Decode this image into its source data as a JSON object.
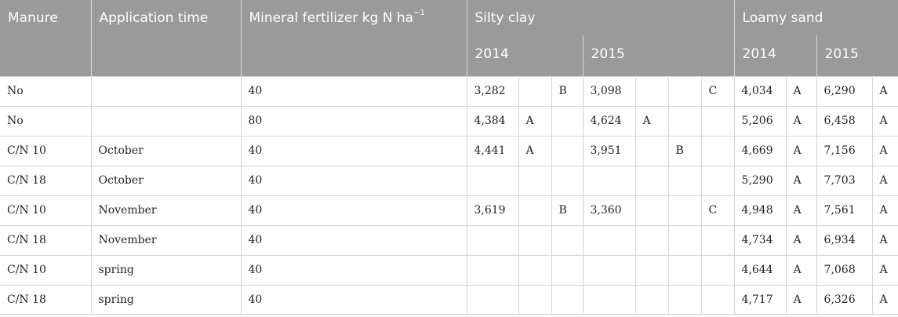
{
  "header": {
    "manure": "Manure",
    "application_time": "Application time",
    "mineral_fertilizer": "Mineral fertilizer kg N ha",
    "mineral_fertilizer_sup": "−1",
    "silty_clay": "Silty clay",
    "loamy_sand": "Loamy sand",
    "year_2014": "2014",
    "year_2015": "2015"
  },
  "rows": [
    {
      "manure": "No",
      "time": "",
      "mineral": "40",
      "sc14": "3,282",
      "sc14_a": "",
      "sc14_b": "B",
      "sc15": "3,098",
      "sc15_a": "",
      "sc15_b": "",
      "sc15_c": "C",
      "ls14": "4,034",
      "ls14_g": "A",
      "ls15": "6,290",
      "ls15_g": "A"
    },
    {
      "manure": "No",
      "time": "",
      "mineral": "80",
      "sc14": "4,384",
      "sc14_a": "A",
      "sc14_b": "",
      "sc15": "4,624",
      "sc15_a": "A",
      "sc15_b": "",
      "sc15_c": "",
      "ls14": "5,206",
      "ls14_g": "A",
      "ls15": "6,458",
      "ls15_g": "A"
    },
    {
      "manure": "C/N 10",
      "time": "October",
      "mineral": "40",
      "sc14": "4,441",
      "sc14_a": "A",
      "sc14_b": "",
      "sc15": "3,951",
      "sc15_a": "",
      "sc15_b": "B",
      "sc15_c": "",
      "ls14": "4,669",
      "ls14_g": "A",
      "ls15": "7,156",
      "ls15_g": "A"
    },
    {
      "manure": "C/N 18",
      "time": "October",
      "mineral": "40",
      "sc14": "",
      "sc14_a": "",
      "sc14_b": "",
      "sc15": "",
      "sc15_a": "",
      "sc15_b": "",
      "sc15_c": "",
      "ls14": "5,290",
      "ls14_g": "A",
      "ls15": "7,703",
      "ls15_g": "A"
    },
    {
      "manure": "C/N 10",
      "time": "November",
      "mineral": "40",
      "sc14": "3,619",
      "sc14_a": "",
      "sc14_b": "B",
      "sc15": "3,360",
      "sc15_a": "",
      "sc15_b": "",
      "sc15_c": "C",
      "ls14": "4,948",
      "ls14_g": "A",
      "ls15": "7,561",
      "ls15_g": "A"
    },
    {
      "manure": "C/N 18",
      "time": "November",
      "mineral": "40",
      "sc14": "",
      "sc14_a": "",
      "sc14_b": "",
      "sc15": "",
      "sc15_a": "",
      "sc15_b": "",
      "sc15_c": "",
      "ls14": "4,734",
      "ls14_g": "A",
      "ls15": "6,934",
      "ls15_g": "A"
    },
    {
      "manure": "C/N 10",
      "time": "spring",
      "mineral": "40",
      "sc14": "",
      "sc14_a": "",
      "sc14_b": "",
      "sc15": "",
      "sc15_a": "",
      "sc15_b": "",
      "sc15_c": "",
      "ls14": "4,644",
      "ls14_g": "A",
      "ls15": "7,068",
      "ls15_g": "A"
    },
    {
      "manure": "C/N 18",
      "time": "spring",
      "mineral": "40",
      "sc14": "",
      "sc14_a": "",
      "sc14_b": "",
      "sc15": "",
      "sc15_a": "",
      "sc15_b": "",
      "sc15_c": "",
      "ls14": "4,717",
      "ls14_g": "A",
      "ls15": "6,326",
      "ls15_g": "A"
    }
  ]
}
